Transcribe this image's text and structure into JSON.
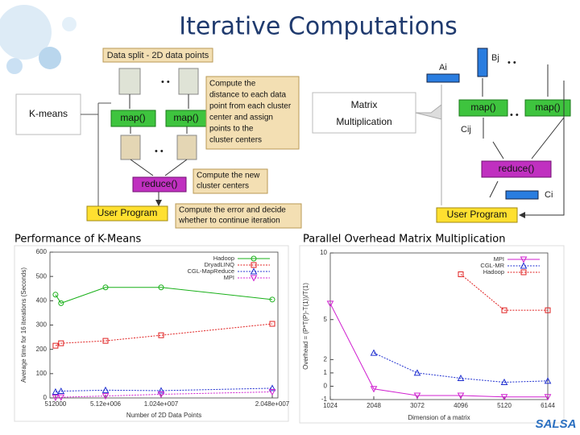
{
  "slide_title": "Iterative Computations",
  "logo": "SALSA",
  "kmeans_diagram": {
    "label": "K-means",
    "data_split": "Data split - 2D data points",
    "map_1": "map()",
    "map_2": "map()",
    "assign_note": [
      "Compute the",
      "distance to each data",
      "point from each cluster",
      "center and assign",
      "points to the",
      "cluster centers"
    ],
    "reduce": "reduce()",
    "reduce_note": [
      "Compute the new",
      "cluster centers"
    ],
    "user_program": "User Program",
    "user_note": [
      "Compute the error and decide",
      "whether to continue iteration"
    ]
  },
  "matrix_diagram": {
    "label": [
      "Matrix",
      "Multiplication"
    ],
    "a_label": "Ai",
    "b_label": "Bj",
    "map_1": "map()",
    "map_2": "map()",
    "c_label": "Cij",
    "reduce": "reduce()",
    "ci_label": "Ci",
    "user_program": "User Program"
  },
  "chart_data": [
    {
      "type": "line",
      "title": "Performance of K-Means",
      "x_label": "Number of 2D Data Points",
      "y_label": "Average time for 16 iterations (Seconds)",
      "x": [
        512000,
        1024000,
        5120000,
        10240000,
        20480000
      ],
      "xlim": [
        0,
        21000000
      ],
      "ylim": [
        0,
        600
      ],
      "xticks": [
        512000,
        {
          "value": 5120000,
          "label": "5.12e+006"
        },
        {
          "value": 10240000,
          "label": "1.024e+007"
        },
        {
          "value": 20480000,
          "label": "2.048e+007"
        }
      ],
      "yticks": [
        0,
        100,
        200,
        300,
        400,
        500,
        600
      ],
      "legend": "upper right",
      "series": [
        {
          "name": "Hadoop",
          "color": "#19b019",
          "marker": "circle",
          "values": [
            425,
            390,
            455,
            455,
            405
          ]
        },
        {
          "name": "DryadLINQ",
          "color": "#e02020",
          "marker": "square",
          "values": [
            215,
            225,
            235,
            258,
            305
          ]
        },
        {
          "name": "CGL-MapReduce",
          "color": "#2030d0",
          "marker": "triangle",
          "values": [
            25,
            28,
            32,
            30,
            40
          ]
        },
        {
          "name": "MPI",
          "color": "#d020d0",
          "marker": "triangle-down",
          "values": [
            2,
            3,
            8,
            15,
            25
          ]
        }
      ]
    },
    {
      "type": "line",
      "title": "Parallel Overhead  Matrix Multiplication",
      "x_label": "Dimension of a matrix",
      "y_label": "Overhead = (P*T(P)-T(1))/T(1)",
      "x": [
        1024,
        2048,
        3072,
        4096,
        5120,
        6144
      ],
      "xlim": [
        1024,
        6144
      ],
      "ylim": [
        -1,
        10
      ],
      "xticks": [
        1024,
        2048,
        3072,
        4096,
        5120,
        6144
      ],
      "yticks": [
        -1,
        0,
        1,
        2,
        5,
        10
      ],
      "legend": "upper right",
      "series": [
        {
          "name": "MPI",
          "color": "#d020d0",
          "marker": "triangle-down",
          "values": [
            6.2,
            -0.2,
            -0.7,
            -0.7,
            -0.8,
            -0.8
          ]
        },
        {
          "name": "CGL-MR",
          "color": "#2030d0",
          "marker": "triangle",
          "values": [
            null,
            2.5,
            1.0,
            0.6,
            0.3,
            0.4
          ]
        },
        {
          "name": "Hadoop",
          "color": "#e02020",
          "marker": "square",
          "values": [
            null,
            null,
            null,
            8.4,
            5.7,
            5.7
          ]
        }
      ]
    }
  ]
}
